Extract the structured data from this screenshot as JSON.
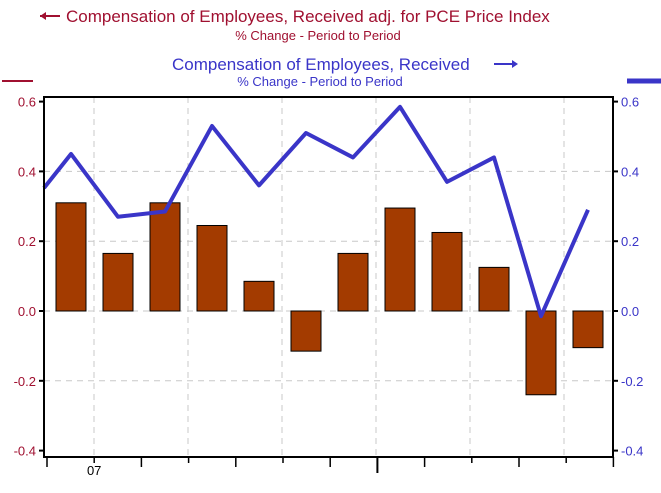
{
  "chart_data": {
    "type": "bar+line",
    "title_left": "Compensation of Employees, Received  adj. for PCE Price Index",
    "subtitle_left": "% Change - Period to Period",
    "title_right": "Compensation of Employees, Received",
    "subtitle_right": "% Change - Period to Period",
    "colors": {
      "left": "#a01030",
      "right": "#3a35c8",
      "bar": "#a33b00",
      "grid": "#c8c8c8"
    },
    "ylim_left": [
      -0.4,
      0.6
    ],
    "ylim_right": [
      -0.4,
      0.6
    ],
    "yticks_left": [
      "0.6",
      "0.4",
      "0.2",
      "0.0",
      "-0.2",
      "-0.4"
    ],
    "yticks_right": [
      "0.6",
      "0.4",
      "0.2",
      "0.0",
      "-0.2",
      "-0.4"
    ],
    "yticks_values": [
      0.6,
      0.4,
      0.2,
      0.0,
      -0.2,
      -0.4
    ],
    "xtick_labels": [
      {
        "label": "07",
        "position": 1
      }
    ],
    "grid": true,
    "series": [
      {
        "name": "Compensation of Employees, Received adj. for PCE Price Index",
        "type": "bar",
        "axis": "left",
        "values": [
          0.31,
          0.165,
          0.31,
          0.245,
          0.085,
          -0.115,
          0.165,
          0.295,
          0.225,
          0.125,
          -0.24,
          -0.105
        ]
      },
      {
        "name": "Compensation of Employees, Received",
        "type": "line",
        "axis": "right",
        "prior_value": 0.28,
        "values": [
          0.45,
          0.27,
          0.285,
          0.53,
          0.36,
          0.51,
          0.44,
          0.585,
          0.37,
          0.44,
          -0.015,
          0.29
        ]
      }
    ]
  }
}
